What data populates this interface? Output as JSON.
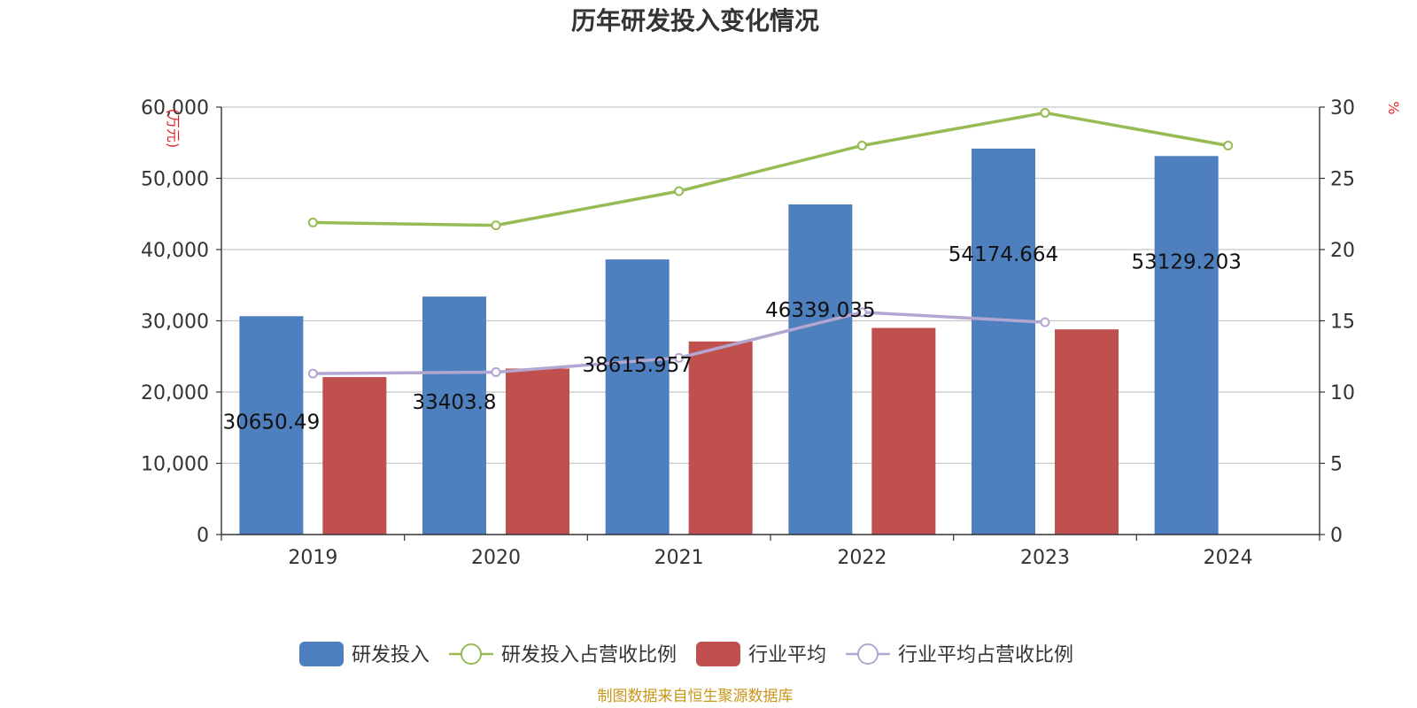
{
  "chart_data": {
    "type": "bar",
    "title": "历年研发投入变化情况",
    "categories": [
      "2019",
      "2020",
      "2021",
      "2022",
      "2023",
      "2024"
    ],
    "left_axis": {
      "unit": "(万元)",
      "ylim": [
        0,
        60000
      ],
      "ticks": [
        "0",
        "10,000",
        "20,000",
        "30,000",
        "40,000",
        "50,000",
        "60,000"
      ]
    },
    "right_axis": {
      "unit": "%",
      "ylim": [
        0,
        30
      ],
      "ticks": [
        "0",
        "5",
        "10",
        "15",
        "20",
        "25",
        "30"
      ]
    },
    "series": [
      {
        "name": "研发投入",
        "kind": "bar",
        "axis": "left",
        "color": "#4e7fbe",
        "values": [
          30650.49,
          33403.8,
          38615.957,
          46339.035,
          54174.664,
          53129.203
        ],
        "labels": [
          "30650.49",
          "33403.8",
          "38615.957",
          "46339.035",
          "54174.664",
          "53129.203"
        ]
      },
      {
        "name": "研发投入占营收比例",
        "kind": "line",
        "axis": "right",
        "color": "#96bb55",
        "values": [
          21.9,
          21.7,
          24.1,
          27.3,
          29.6,
          27.3
        ]
      },
      {
        "name": "行业平均",
        "kind": "bar",
        "axis": "left",
        "color": "#c0504d",
        "values": [
          22100,
          23300,
          27100,
          29000,
          28800,
          null
        ]
      },
      {
        "name": "行业平均占营收比例",
        "kind": "line",
        "axis": "right",
        "color": "#b3a6d1",
        "values": [
          11.3,
          11.4,
          12.4,
          15.6,
          14.9,
          null
        ]
      }
    ],
    "grid": true,
    "legend_position": "bottom"
  },
  "footer": {
    "source": "制图数据来自恒生聚源数据库"
  }
}
